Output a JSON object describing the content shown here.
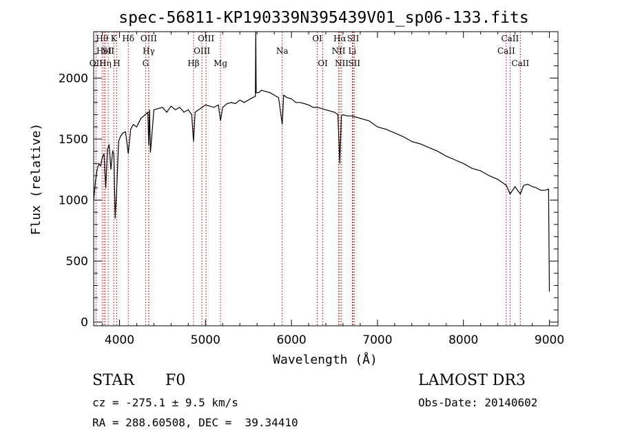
{
  "chart_data": {
    "type": "line",
    "title": "spec-56811-KP190339N395439V01_sp06-133.fits",
    "xlabel": "Wavelength (Å)",
    "ylabel": "Flux (relative)",
    "xlim": [
      3700,
      9100
    ],
    "ylim": [
      -30,
      2380
    ],
    "x_ticks": [
      4000,
      5000,
      6000,
      7000,
      8000,
      9000
    ],
    "y_ticks": [
      0,
      500,
      1000,
      1500,
      2000
    ],
    "grid": false,
    "series": [
      {
        "x": [
          3700,
          3720,
          3740,
          3760,
          3780,
          3800,
          3820,
          3840,
          3860,
          3880,
          3900,
          3920,
          3935,
          3950,
          3968,
          3990,
          4010,
          4040,
          4070,
          4102,
          4130,
          4160,
          4200,
          4250,
          4300,
          4330,
          4340,
          4350,
          4360,
          4400,
          4450,
          4500,
          4550,
          4600,
          4650,
          4700,
          4750,
          4800,
          4840,
          4861,
          4880,
          4920,
          4960,
          5000,
          5050,
          5100,
          5150,
          5175,
          5200,
          5250,
          5300,
          5350,
          5400,
          5450,
          5500,
          5550,
          5580,
          5585,
          5590,
          5620,
          5650,
          5700,
          5750,
          5800,
          5850,
          5893,
          5910,
          5950,
          6000,
          6050,
          6100,
          6150,
          6200,
          6250,
          6300,
          6350,
          6400,
          6450,
          6500,
          6540,
          6563,
          6580,
          6600,
          6650,
          6700,
          6750,
          6800,
          6900,
          7000,
          7100,
          7200,
          7300,
          7400,
          7500,
          7600,
          7700,
          7800,
          7900,
          8000,
          8100,
          8200,
          8300,
          8400,
          8500,
          8542,
          8600,
          8662,
          8700,
          8750,
          8800,
          8850,
          8900,
          8950,
          8990,
          9000
        ],
        "values": [
          1000,
          1150,
          1250,
          1300,
          1280,
          1350,
          1380,
          1100,
          1420,
          1450,
          1250,
          1400,
          1380,
          850,
          1100,
          1480,
          1520,
          1550,
          1560,
          1380,
          1580,
          1620,
          1600,
          1670,
          1700,
          1720,
          1450,
          1740,
          1390,
          1740,
          1750,
          1760,
          1720,
          1770,
          1740,
          1760,
          1720,
          1740,
          1700,
          1480,
          1720,
          1740,
          1760,
          1780,
          1770,
          1760,
          1780,
          1650,
          1760,
          1790,
          1800,
          1790,
          1820,
          1800,
          1820,
          1840,
          1850,
          2380,
          1880,
          1880,
          1900,
          1890,
          1880,
          1860,
          1840,
          1620,
          1860,
          1840,
          1830,
          1800,
          1800,
          1790,
          1780,
          1760,
          1760,
          1750,
          1740,
          1730,
          1720,
          1700,
          1300,
          1690,
          1700,
          1690,
          1690,
          1680,
          1670,
          1650,
          1600,
          1580,
          1550,
          1520,
          1480,
          1460,
          1430,
          1400,
          1360,
          1330,
          1300,
          1260,
          1240,
          1200,
          1170,
          1120,
          1050,
          1110,
          1050,
          1120,
          1130,
          1110,
          1100,
          1080,
          1080,
          1090,
          250
        ]
      }
    ],
    "line_markers": [
      {
        "label": "OII",
        "wl": 3727,
        "row": 2
      },
      {
        "label": "Hθ",
        "wl": 3798,
        "row": 0
      },
      {
        "label": "HeI",
        "wl": 3820,
        "row": 1
      },
      {
        "label": "Hη",
        "wl": 3835,
        "row": 2
      },
      {
        "label": "SII",
        "wl": 3869,
        "row": 1
      },
      {
        "label": "K",
        "wl": 3934,
        "row": 0
      },
      {
        "label": "H",
        "wl": 3968,
        "row": 2
      },
      {
        "label": "Hδ",
        "wl": 4102,
        "row": 0
      },
      {
        "label": "G",
        "wl": 4304,
        "row": 2
      },
      {
        "label": "OIII",
        "wl": 4340,
        "row": 0
      },
      {
        "label": "Hγ",
        "wl": 4340,
        "row": 1
      },
      {
        "label": "Hβ",
        "wl": 4861,
        "row": 2
      },
      {
        "label": "OIII",
        "wl": 4959,
        "row": 1
      },
      {
        "label": "OIII",
        "wl": 5007,
        "row": 0
      },
      {
        "label": "Mg",
        "wl": 5175,
        "row": 2
      },
      {
        "label": "Na",
        "wl": 5893,
        "row": 1
      },
      {
        "label": "OI",
        "wl": 6300,
        "row": 0
      },
      {
        "label": "OI",
        "wl": 6364,
        "row": 2
      },
      {
        "label": "NII",
        "wl": 6548,
        "row": 1
      },
      {
        "label": "Hα",
        "wl": 6563,
        "row": 0
      },
      {
        "label": "NII",
        "wl": 6584,
        "row": 2
      },
      {
        "label": "SII",
        "wl": 6717,
        "row": 0
      },
      {
        "label": "Li",
        "wl": 6708,
        "row": 1
      },
      {
        "label": "SII",
        "wl": 6731,
        "row": 2
      },
      {
        "label": "CaII",
        "wl": 8498,
        "row": 1
      },
      {
        "label": "CaII",
        "wl": 8542,
        "row": 0
      },
      {
        "label": "CaII",
        "wl": 8662,
        "row": 2
      }
    ],
    "line_color": "#000000",
    "marker_color": "#b22222"
  },
  "info": {
    "object_class": "STAR",
    "subclass": "F0",
    "survey": "LAMOST DR3",
    "redshift": "cz = -275.1 ± 9.5 km/s",
    "obs_date": "Obs-Date: 20140602",
    "coords": "RA = 288.60508, DEC =  39.34410"
  }
}
